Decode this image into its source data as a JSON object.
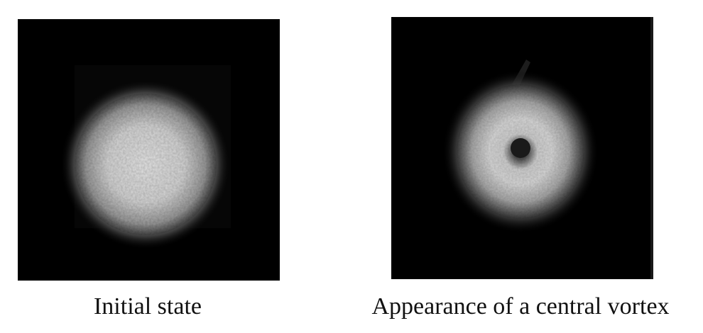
{
  "figure": {
    "panels": [
      {
        "caption": "Initial state",
        "content": "bright-blob"
      },
      {
        "caption": "Appearance of a central vortex",
        "content": "ring-with-central-hole"
      }
    ],
    "colors": {
      "background": "#ffffff",
      "panel": "#000000",
      "text": "#111111"
    }
  }
}
